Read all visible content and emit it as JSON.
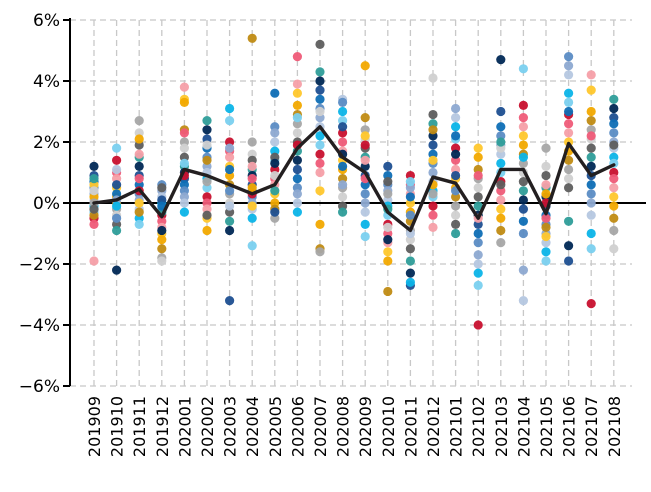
{
  "chart_data": {
    "type": "scatter",
    "title": "",
    "xlabel": "",
    "ylabel": "",
    "ylim": [
      -6,
      6
    ],
    "yticks": [
      -6,
      -4,
      -2,
      0,
      2,
      4,
      6
    ],
    "ytick_labels": [
      "−6%",
      "−4%",
      "−2%",
      "0%",
      "2%",
      "4%",
      "6%"
    ],
    "grid": true,
    "categories": [
      "201909",
      "201910",
      "201911",
      "201912",
      "202001",
      "202002",
      "202003",
      "202004",
      "202005",
      "202006",
      "202007",
      "202008",
      "202009",
      "202010",
      "202011",
      "202012",
      "202101",
      "202102",
      "202103",
      "202104",
      "202105",
      "202106",
      "202107",
      "202108"
    ],
    "point_colors": [
      "#002855",
      "#1d4f91",
      "#0e6eb5",
      "#5b8cc4",
      "#8da9d1",
      "#b5c7e0",
      "#0bb4e8",
      "#7ad0ef",
      "#c8102e",
      "#ef5b78",
      "#f59fa8",
      "#ffc72c",
      "#f2a900",
      "#c08b13",
      "#a6a6a6",
      "#d0d0d0",
      "#5e5e5e",
      "#2e9d99"
    ],
    "series": [
      {
        "name": "",
        "type": "scatter",
        "values": [
          [
            1.2,
            0.9,
            0.7,
            0.5,
            0.3,
            0.1,
            -0.1,
            -0.3,
            -0.5,
            -0.7,
            -1.9,
            0.6,
            0.2,
            -0.4,
            0.0,
            0.4,
            -0.2,
            0.8
          ],
          [
            1.8,
            1.4,
            1.0,
            0.8,
            0.5,
            0.2,
            0.0,
            -0.2,
            -0.4,
            -0.7,
            -0.9,
            -2.2,
            0.6,
            0.3,
            -0.5,
            0.1,
            1.1,
            -0.1
          ],
          [
            2.7,
            2.3,
            1.9,
            1.5,
            1.2,
            0.9,
            0.6,
            0.3,
            0.1,
            -0.2,
            -0.5,
            -0.7,
            0.4,
            0.8,
            1.6,
            0.0,
            2.1,
            -0.3
          ],
          [
            0.6,
            0.4,
            0.2,
            0.0,
            -0.2,
            -0.4,
            -0.6,
            -0.8,
            -1.0,
            -1.2,
            -1.5,
            -1.8,
            -1.9,
            0.5,
            -0.3,
            -0.9,
            0.1,
            -0.1
          ],
          [
            3.8,
            3.4,
            3.3,
            2.4,
            2.0,
            1.8,
            1.5,
            1.2,
            1.0,
            0.8,
            0.6,
            0.4,
            0.2,
            0.0,
            -0.3,
            1.3,
            0.9,
            2.3
          ],
          [
            2.7,
            2.4,
            2.1,
            1.8,
            1.5,
            1.2,
            1.0,
            0.8,
            0.5,
            0.2,
            0.0,
            -0.2,
            -0.5,
            -0.9,
            1.4,
            0.7,
            1.9,
            -0.4
          ],
          [
            3.1,
            2.7,
            2.0,
            1.7,
            1.5,
            1.2,
            0.9,
            0.6,
            0.3,
            0.0,
            -0.3,
            -0.6,
            -0.9,
            -3.2,
            1.1,
            0.4,
            1.8,
            -0.1
          ],
          [
            5.4,
            2.0,
            1.6,
            1.4,
            1.1,
            0.9,
            0.6,
            0.4,
            0.2,
            0.0,
            -0.2,
            -0.5,
            -1.4,
            0.3,
            0.8,
            1.2,
            -0.1,
            0.5
          ],
          [
            3.6,
            2.5,
            2.3,
            2.0,
            1.7,
            1.4,
            1.1,
            0.8,
            0.6,
            0.3,
            0.0,
            -0.2,
            -0.5,
            0.9,
            1.5,
            0.4,
            1.3,
            -0.3
          ],
          [
            4.8,
            3.9,
            3.6,
            3.2,
            2.9,
            2.6,
            2.3,
            2.0,
            1.7,
            1.4,
            1.1,
            0.8,
            0.5,
            0.3,
            0.0,
            -0.3,
            2.8,
            1.9
          ],
          [
            5.2,
            4.3,
            4.0,
            3.7,
            3.4,
            3.1,
            2.8,
            2.5,
            2.2,
            1.9,
            1.6,
            1.3,
            1.0,
            0.4,
            -0.7,
            -1.5,
            -1.6,
            3.0
          ],
          [
            3.4,
            3.0,
            2.7,
            2.3,
            2.0,
            1.7,
            1.4,
            1.1,
            0.8,
            0.5,
            0.2,
            -0.1,
            -0.3,
            1.6,
            2.5,
            1.2,
            3.3,
            0.6
          ],
          [
            4.5,
            2.8,
            2.4,
            2.1,
            1.8,
            1.5,
            1.2,
            0.9,
            0.6,
            0.3,
            0.0,
            -0.3,
            -0.7,
            -1.1,
            1.9,
            0.8,
            1.4,
            2.2
          ],
          [
            1.2,
            0.9,
            0.6,
            0.4,
            0.1,
            -0.1,
            -0.4,
            -0.7,
            -1.0,
            -1.3,
            -1.6,
            -1.9,
            -2.9,
            0.3,
            -0.8,
            0.7,
            -0.2,
            -1.2
          ],
          [
            0.9,
            0.6,
            0.3,
            0.0,
            -0.3,
            -0.6,
            -0.9,
            -1.2,
            -1.5,
            -1.9,
            -2.3,
            -2.7,
            0.2,
            -0.4,
            0.5,
            -1.0,
            -2.6,
            0.7
          ],
          [
            4.1,
            2.9,
            2.6,
            2.2,
            1.9,
            1.6,
            1.3,
            1.0,
            0.7,
            0.4,
            0.2,
            -0.1,
            -0.4,
            -0.8,
            1.4,
            0.6,
            2.4,
            0.3
          ],
          [
            3.1,
            2.8,
            2.5,
            2.1,
            1.8,
            1.4,
            1.1,
            0.8,
            0.5,
            0.2,
            -0.1,
            -0.4,
            -0.7,
            -1.0,
            1.6,
            0.9,
            2.2,
            0.4
          ],
          [
            1.8,
            1.5,
            1.1,
            0.8,
            0.5,
            0.2,
            -0.1,
            -0.4,
            -0.7,
            -1.0,
            -1.3,
            -1.7,
            -2.0,
            -2.3,
            -2.7,
            -4.0,
            0.9,
            -0.5
          ],
          [
            4.7,
            3.0,
            2.5,
            2.2,
            1.9,
            1.6,
            1.3,
            1.0,
            0.7,
            0.4,
            0.1,
            -0.2,
            -0.5,
            -0.9,
            -1.3,
            1.8,
            0.6,
            2.0
          ],
          [
            4.4,
            3.2,
            2.8,
            2.5,
            2.2,
            1.9,
            1.6,
            1.3,
            1.0,
            0.7,
            0.4,
            0.1,
            -0.2,
            -0.6,
            -1.0,
            -2.2,
            -3.2,
            1.5
          ],
          [
            1.8,
            1.2,
            0.9,
            0.5,
            0.2,
            -0.1,
            -0.4,
            -0.7,
            -1.0,
            -1.3,
            -1.6,
            -1.9,
            0.0,
            -0.5,
            0.6,
            -1.1,
            0.3,
            -0.8
          ],
          [
            4.8,
            4.5,
            4.2,
            3.6,
            3.3,
            2.9,
            2.6,
            2.3,
            2.0,
            1.7,
            1.4,
            1.1,
            0.8,
            0.5,
            -0.6,
            -1.4,
            -1.9,
            3.0
          ],
          [
            4.2,
            3.7,
            3.0,
            2.7,
            2.4,
            2.1,
            1.8,
            1.5,
            1.2,
            0.9,
            0.6,
            0.3,
            0.0,
            -0.4,
            -1.0,
            -1.5,
            -3.3,
            2.2
          ],
          [
            3.4,
            3.1,
            2.8,
            2.6,
            2.3,
            2.0,
            1.8,
            1.5,
            1.3,
            1.0,
            0.8,
            0.5,
            0.2,
            -0.1,
            -0.5,
            -0.9,
            -1.5,
            1.9
          ]
        ]
      },
      {
        "name": "",
        "type": "line",
        "color": "#231f20",
        "values": [
          0.0,
          0.1,
          0.45,
          -0.45,
          1.1,
          0.9,
          0.6,
          0.3,
          0.6,
          1.8,
          2.5,
          1.5,
          1.0,
          -0.3,
          -0.9,
          0.85,
          0.65,
          -0.5,
          1.1,
          1.1,
          -0.35,
          1.95,
          0.9,
          1.25
        ]
      }
    ]
  }
}
